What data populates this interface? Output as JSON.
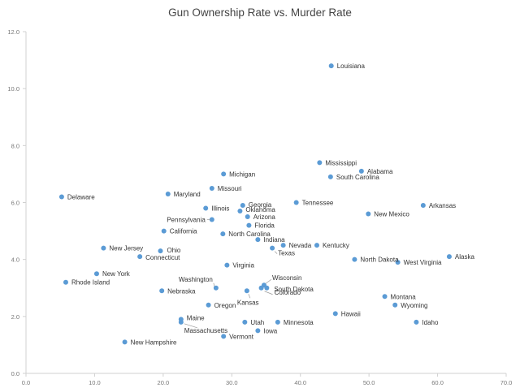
{
  "chart_data": {
    "type": "scatter",
    "title": "Gun Ownership Rate vs. Murder Rate",
    "xlabel": "",
    "ylabel": "",
    "xlim": [
      0,
      70
    ],
    "ylim": [
      0,
      12
    ],
    "x_ticks": [
      "0.0",
      "10.0",
      "20.0",
      "30.0",
      "40.0",
      "50.0",
      "60.0",
      "70.0"
    ],
    "y_ticks": [
      "0.0",
      "2.0",
      "4.0",
      "6.0",
      "8.0",
      "10.0",
      "12.0"
    ],
    "grid": false,
    "marker_color": "#5b9bd5",
    "points": [
      {
        "label": "Louisiana",
        "x": 44.5,
        "y": 10.8
      },
      {
        "label": "Mississippi",
        "x": 42.8,
        "y": 7.4
      },
      {
        "label": "Alabama",
        "x": 48.9,
        "y": 7.1
      },
      {
        "label": "South Carolina",
        "x": 44.4,
        "y": 6.9
      },
      {
        "label": "Michigan",
        "x": 28.8,
        "y": 7.0
      },
      {
        "label": "Missouri",
        "x": 27.1,
        "y": 6.5
      },
      {
        "label": "Maryland",
        "x": 20.7,
        "y": 6.3
      },
      {
        "label": "Delaware",
        "x": 5.2,
        "y": 6.2
      },
      {
        "label": "Tennessee",
        "x": 39.4,
        "y": 6.0
      },
      {
        "label": "Arkansas",
        "x": 57.9,
        "y": 5.9
      },
      {
        "label": "Georgia",
        "x": 31.6,
        "y": 5.9
      },
      {
        "label": "Oklahoma",
        "x": 31.2,
        "y": 5.7
      },
      {
        "label": "Illinois",
        "x": 26.2,
        "y": 5.8
      },
      {
        "label": "Arizona",
        "x": 32.3,
        "y": 5.5
      },
      {
        "label": "Pennsylvania",
        "x": 27.1,
        "y": 5.4
      },
      {
        "label": "New Mexico",
        "x": 49.9,
        "y": 5.6
      },
      {
        "label": "Florida",
        "x": 32.5,
        "y": 5.2
      },
      {
        "label": "California",
        "x": 20.1,
        "y": 5.0
      },
      {
        "label": "North Carolina",
        "x": 28.7,
        "y": 4.9
      },
      {
        "label": "Indiana",
        "x": 33.8,
        "y": 4.7
      },
      {
        "label": "Nevada",
        "x": 37.5,
        "y": 4.5
      },
      {
        "label": "Kentucky",
        "x": 42.4,
        "y": 4.5
      },
      {
        "label": "Texas",
        "x": 35.9,
        "y": 4.4
      },
      {
        "label": "New Jersey",
        "x": 11.3,
        "y": 4.4
      },
      {
        "label": "Ohio",
        "x": 19.6,
        "y": 4.3
      },
      {
        "label": "Connecticut",
        "x": 16.6,
        "y": 4.1
      },
      {
        "label": "North Dakota",
        "x": 47.9,
        "y": 4.0
      },
      {
        "label": "West Virginia",
        "x": 54.2,
        "y": 3.9
      },
      {
        "label": "Alaska",
        "x": 61.7,
        "y": 4.1
      },
      {
        "label": "Virginia",
        "x": 29.3,
        "y": 3.8
      },
      {
        "label": "New York",
        "x": 10.3,
        "y": 3.5
      },
      {
        "label": "Rhode Island",
        "x": 5.8,
        "y": 3.2
      },
      {
        "label": "Wisconsin",
        "x": 34.7,
        "y": 3.1
      },
      {
        "label": "South Dakota",
        "x": 35.1,
        "y": 3.0
      },
      {
        "label": "Washington",
        "x": 27.7,
        "y": 3.0
      },
      {
        "label": "Colorado",
        "x": 34.3,
        "y": 3.0
      },
      {
        "label": "Nebraska",
        "x": 19.8,
        "y": 2.9
      },
      {
        "label": "Kansas",
        "x": 32.2,
        "y": 2.9
      },
      {
        "label": "Montana",
        "x": 52.3,
        "y": 2.7
      },
      {
        "label": "Wyoming",
        "x": 53.8,
        "y": 2.4
      },
      {
        "label": "Oregon",
        "x": 26.6,
        "y": 2.4
      },
      {
        "label": "Hawaii",
        "x": 45.1,
        "y": 2.1
      },
      {
        "label": "Maine",
        "x": 22.6,
        "y": 1.9
      },
      {
        "label": "Massachusetts",
        "x": 22.6,
        "y": 1.8
      },
      {
        "label": "Utah",
        "x": 31.9,
        "y": 1.8
      },
      {
        "label": "Minnesota",
        "x": 36.7,
        "y": 1.8
      },
      {
        "label": "Idaho",
        "x": 56.9,
        "y": 1.8
      },
      {
        "label": "Iowa",
        "x": 33.8,
        "y": 1.5
      },
      {
        "label": "Vermont",
        "x": 28.8,
        "y": 1.3
      },
      {
        "label": "New Hampshire",
        "x": 14.4,
        "y": 1.1
      }
    ]
  }
}
